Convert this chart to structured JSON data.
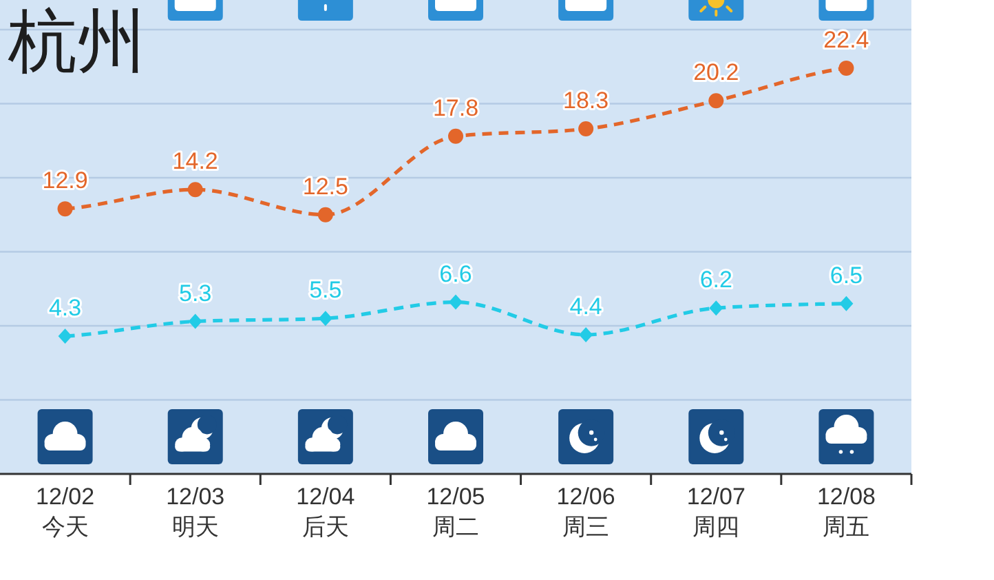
{
  "chart_data": {
    "type": "line",
    "title": "杭州",
    "categories": [
      "12/02\n今天",
      "12/03\n明天",
      "12/04\n后天",
      "12/05\n周二",
      "12/06\n周三",
      "12/07\n周四",
      "12/08\n周五"
    ],
    "series": [
      {
        "color": "#e3662a",
        "values": [
          12.9,
          14.2,
          12.5,
          17.8,
          18.3,
          20.2,
          22.4
        ],
        "marker": "circle",
        "line_style": "dashed"
      },
      {
        "color": "#22cbe6",
        "values": [
          4.3,
          5.3,
          5.5,
          6.6,
          4.4,
          6.2,
          6.5
        ],
        "marker": "diamond",
        "line_style": "dashed"
      }
    ],
    "ylim": [
      -5,
      27
    ],
    "yticks": [
      {
        "value": 0,
        "label": null
      },
      {
        "value": 5,
        "label": null
      },
      {
        "value": 10,
        "label": null
      },
      {
        "value": 15,
        "label": null
      },
      {
        "value": 20,
        "label": null
      },
      {
        "value": 25,
        "label": null
      }
    ],
    "grid": "y",
    "tick_labels": "x",
    "data_labels": true
  }
}
